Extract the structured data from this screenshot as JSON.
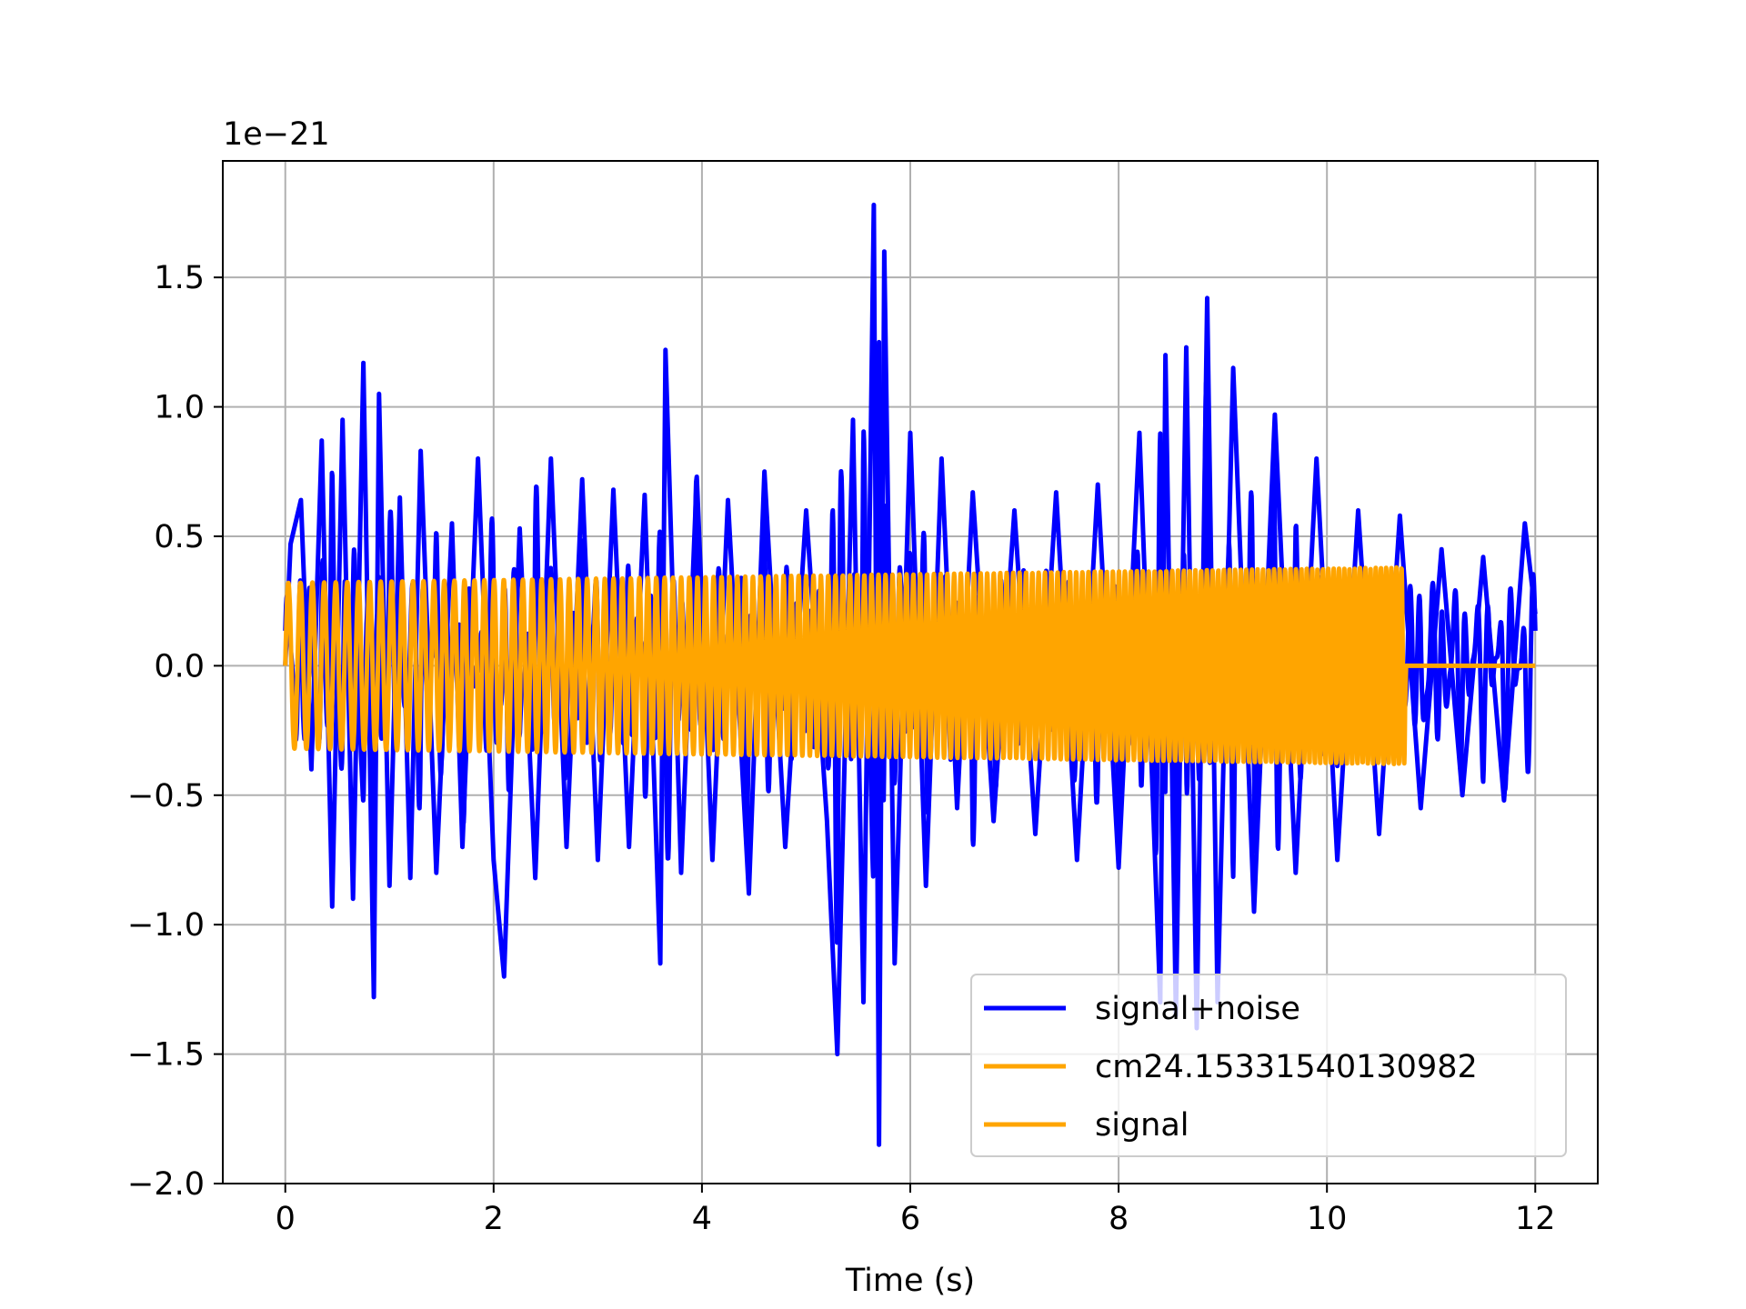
{
  "chart_data": {
    "type": "line",
    "xlabel": "Time (s)",
    "ylabel": "",
    "y_offset_label": "1e−21",
    "xlim": [
      -0.6,
      12.6
    ],
    "ylim": [
      -2.0,
      1.95
    ],
    "x_ticks": [
      0,
      2,
      4,
      6,
      8,
      10,
      12
    ],
    "y_ticks": [
      -2.0,
      -1.5,
      -1.0,
      -0.5,
      0.0,
      0.5,
      1.0,
      1.5
    ],
    "x_tick_labels": [
      "0",
      "2",
      "4",
      "6",
      "8",
      "10",
      "12"
    ],
    "y_tick_labels": [
      "−2.0",
      "−1.5",
      "−1.0",
      "−0.5",
      "0.0",
      "0.5",
      "1.0",
      "1.5"
    ],
    "grid": true,
    "legend_position": "lower-right",
    "series": [
      {
        "name": "signal+noise",
        "color": "#0000ff",
        "x": [
          0.0,
          0.05,
          0.15,
          0.25,
          0.35,
          0.45,
          0.55,
          0.65,
          0.75,
          0.85,
          0.9,
          1.0,
          1.1,
          1.2,
          1.3,
          1.45,
          1.6,
          1.7,
          1.85,
          2.0,
          2.1,
          2.25,
          2.4,
          2.55,
          2.7,
          2.85,
          3.0,
          3.15,
          3.3,
          3.45,
          3.6,
          3.65,
          3.8,
          3.95,
          4.1,
          4.25,
          4.45,
          4.6,
          4.8,
          5.0,
          5.2,
          5.3,
          5.45,
          5.55,
          5.65,
          5.7,
          5.75,
          5.85,
          6.0,
          6.15,
          6.3,
          6.45,
          6.6,
          6.8,
          7.0,
          7.2,
          7.4,
          7.6,
          7.8,
          8.0,
          8.2,
          8.4,
          8.45,
          8.55,
          8.65,
          8.75,
          8.85,
          8.95,
          9.1,
          9.3,
          9.5,
          9.7,
          9.9,
          10.1,
          10.3,
          10.5,
          10.7,
          10.9,
          11.1,
          11.3,
          11.5,
          11.7,
          11.9,
          12.0
        ],
        "y": [
          0.0,
          0.47,
          0.64,
          -0.4,
          0.87,
          -0.93,
          0.95,
          -0.9,
          1.17,
          -1.28,
          1.05,
          -0.85,
          0.65,
          -0.82,
          0.83,
          -0.8,
          0.55,
          -0.7,
          0.8,
          -0.75,
          -1.2,
          0.53,
          -0.82,
          0.8,
          -0.7,
          0.72,
          -0.75,
          0.68,
          -0.7,
          0.66,
          -1.15,
          1.22,
          -0.8,
          0.73,
          -0.75,
          0.64,
          -0.88,
          0.75,
          -0.7,
          0.6,
          -0.6,
          -1.5,
          0.95,
          -1.3,
          1.78,
          -1.85,
          1.6,
          -1.15,
          0.9,
          -0.85,
          0.8,
          -0.55,
          0.67,
          -0.6,
          0.6,
          -0.65,
          0.67,
          -0.75,
          0.7,
          -0.78,
          0.9,
          -1.3,
          1.2,
          -1.35,
          1.23,
          -1.4,
          1.42,
          -1.3,
          1.15,
          -0.95,
          0.97,
          -0.8,
          0.8,
          -0.75,
          0.6,
          -0.65,
          0.58,
          -0.55,
          0.45,
          -0.5,
          0.42,
          -0.52,
          0.55,
          0.2
        ]
      },
      {
        "name": "cm24.15331540130982",
        "color": "#ffa500",
        "x": [
          0.0,
          10.75,
          10.76,
          12.0
        ],
        "y": [
          0.32,
          0.38,
          0.0,
          0.0
        ]
      },
      {
        "name": "signal",
        "color": "#ffa500",
        "x": [
          0.0,
          10.75,
          10.76,
          12.0
        ],
        "y": [
          -0.32,
          -0.38,
          0.0,
          0.0
        ]
      }
    ]
  }
}
